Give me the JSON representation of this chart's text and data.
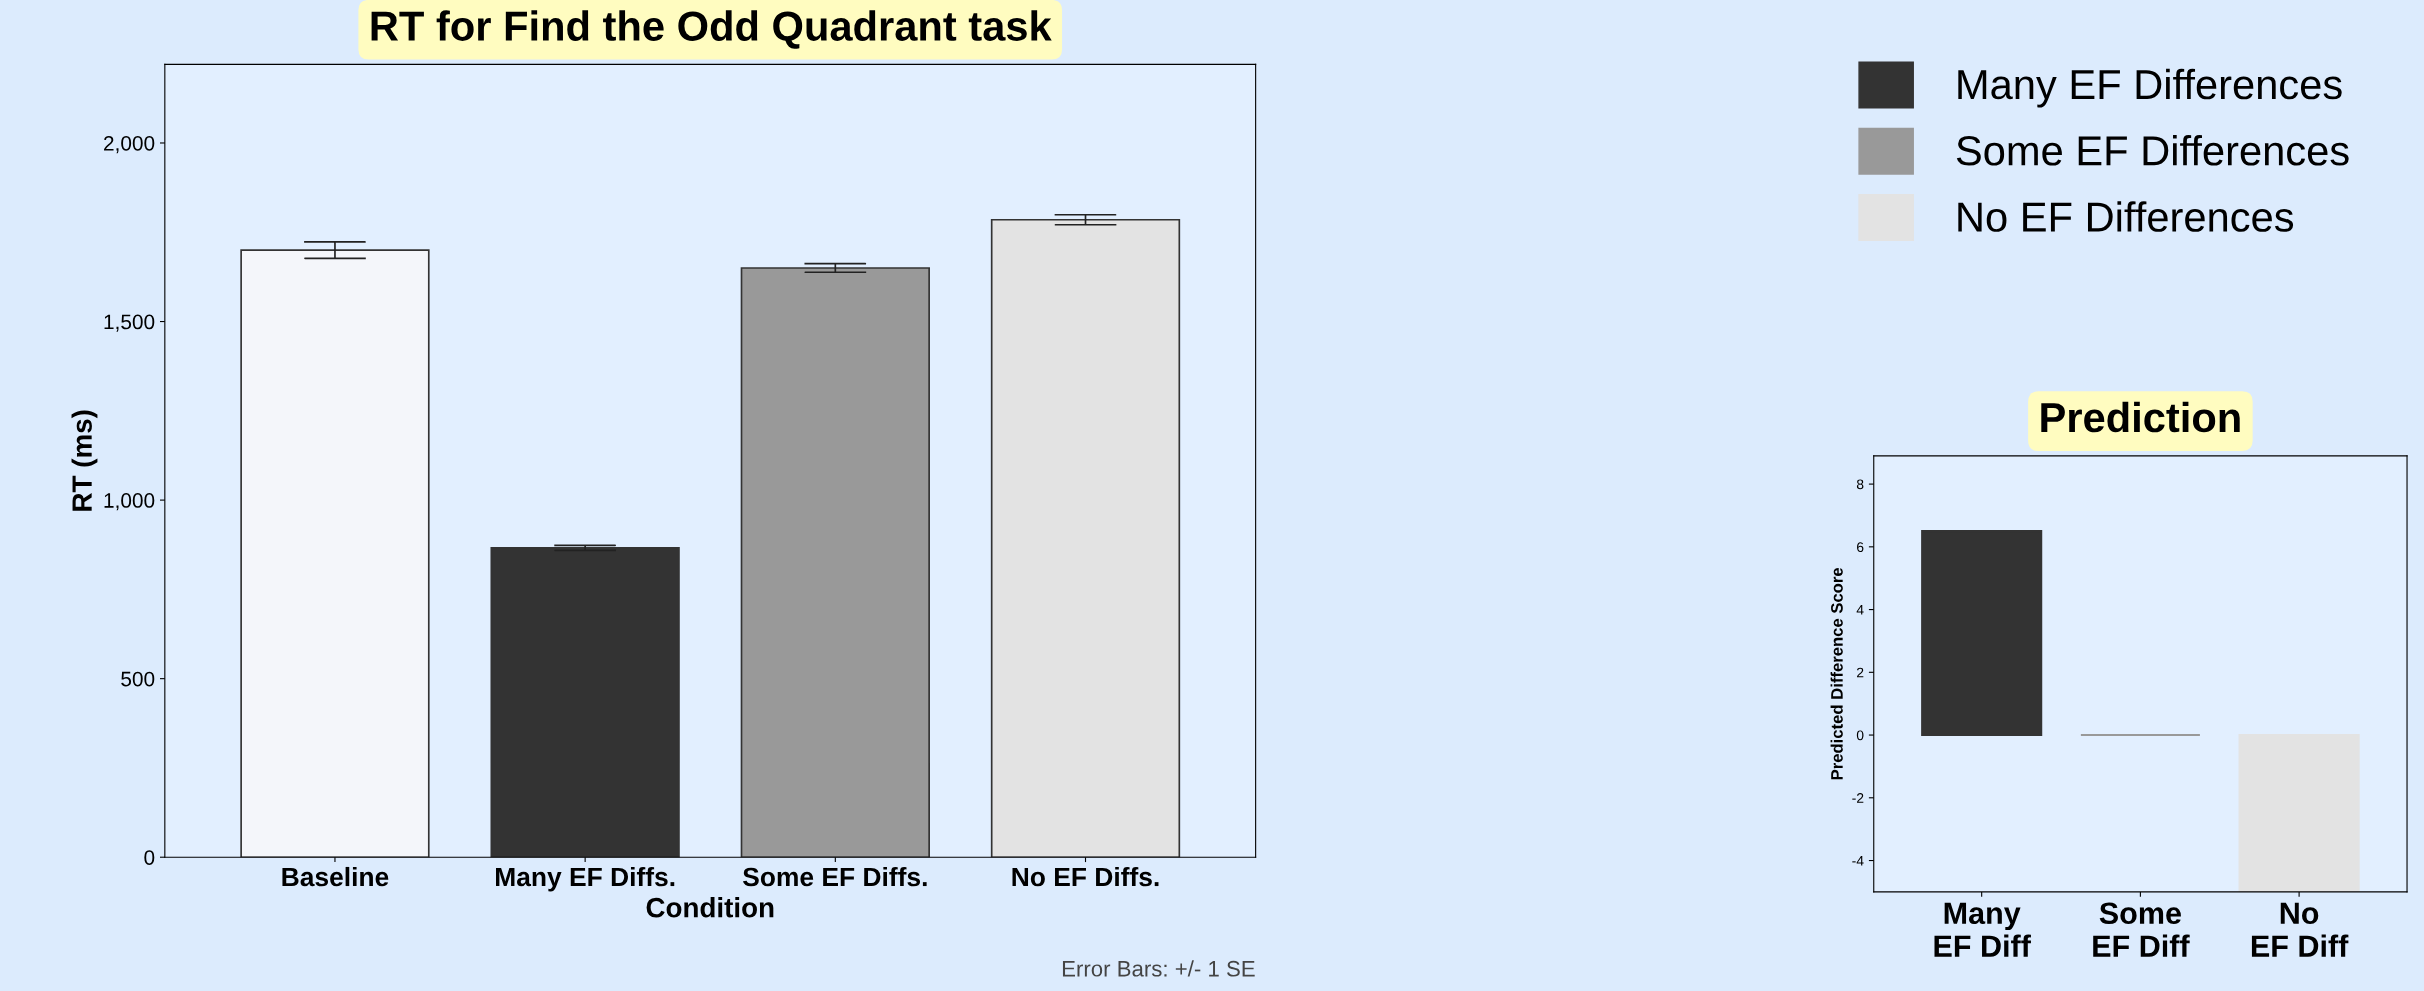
{
  "chart_data": [
    {
      "type": "bar",
      "title": "RT for Find the Odd Quadrant task",
      "xlabel": "Condition",
      "ylabel": "RT (ms)",
      "categories": [
        "Baseline",
        "Many EF Diffs.",
        "Some EF Diffs.",
        "No EF Diffs."
      ],
      "values": [
        1700,
        866,
        1650,
        1785
      ],
      "errors": [
        23,
        7,
        12,
        14
      ],
      "colors": [
        "#f4f6fa",
        "#333333",
        "#999999",
        "#e3e3e3"
      ],
      "ylim": [
        0,
        2220
      ],
      "yticks": [
        {
          "value": 0,
          "label": "0"
        },
        {
          "value": 500,
          "label": "500"
        },
        {
          "value": 1000,
          "label": "1,000"
        },
        {
          "value": 1500,
          "label": "1,500"
        },
        {
          "value": 2000,
          "label": "2,000"
        }
      ],
      "grid": false,
      "annotations": [
        "Error Bars: +/- 1 SE"
      ]
    },
    {
      "type": "bar",
      "title": "Prediction",
      "ylabel": "Predicted Difference Score",
      "categories": [
        "Many\nEF Diff",
        "Some\nEF Diff",
        "No\nEF Diff"
      ],
      "series": [
        {
          "name": "Many EF Differences",
          "color": "#333333",
          "values": [
            6.5,
            null,
            null
          ]
        },
        {
          "name": "Some EF Differences",
          "color": "#999999",
          "values": [
            null,
            0,
            null
          ]
        },
        {
          "name": "No EF Differences",
          "color": "#e3e3e3",
          "values": [
            null,
            null,
            -5
          ]
        }
      ],
      "ylim": [
        -5,
        8.9
      ],
      "yticks": [
        -4,
        -2,
        0,
        2,
        4,
        6,
        8
      ],
      "grid": false,
      "legend": "top"
    }
  ]
}
